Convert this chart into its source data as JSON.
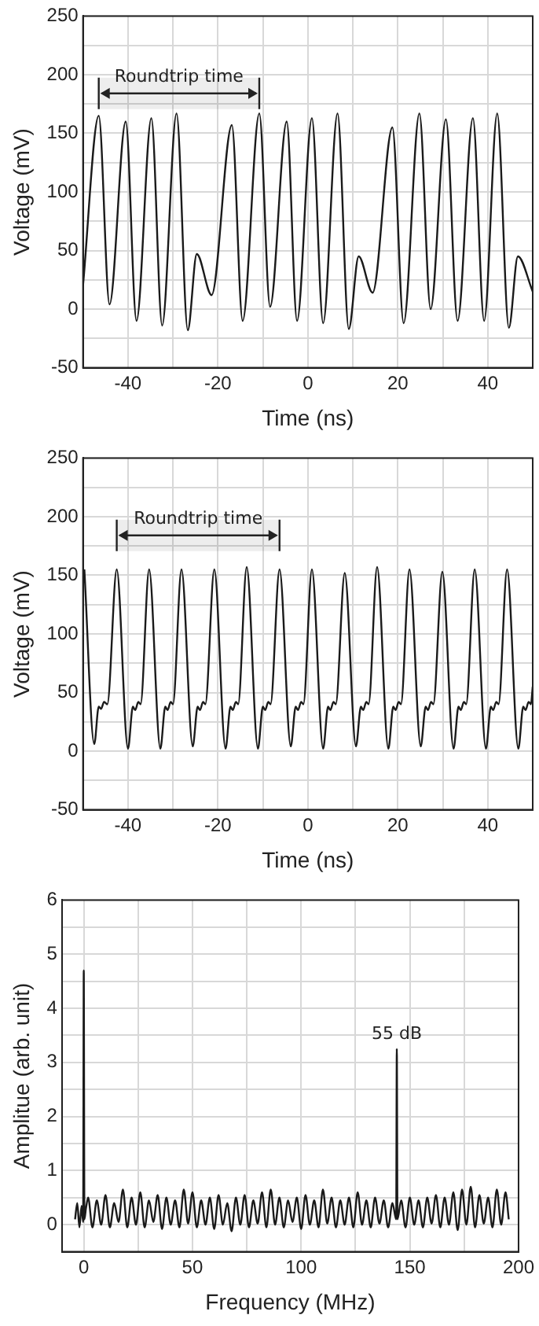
{
  "chart_data": [
    {
      "type": "line",
      "xlabel": "Time (ns)",
      "ylabel": "Voltage (mV)",
      "grid": true,
      "marker": "none",
      "line_style": "solid",
      "xlim": [
        -50,
        50
      ],
      "ylim": [
        -50,
        250
      ],
      "xticks": [
        {
          "value": -50,
          "label": null
        },
        -40,
        {
          "value": -30,
          "label": null
        },
        -20,
        {
          "value": -10,
          "label": null
        },
        0,
        {
          "value": 10,
          "label": null
        },
        20,
        {
          "value": 30,
          "label": null
        },
        40,
        {
          "value": 50,
          "label": null
        }
      ],
      "yticks": [
        -50,
        {
          "value": -25,
          "label": null
        },
        0,
        {
          "value": 25,
          "label": null
        },
        50,
        {
          "value": 75,
          "label": null
        },
        100,
        {
          "value": 125,
          "label": null
        },
        150,
        {
          "value": 175,
          "label": null
        },
        200,
        {
          "value": 225,
          "label": null
        },
        250
      ],
      "bands": [
        {
          "axis": "x",
          "from": -46.5,
          "to": -10.8,
          "label": "Roundtrip time"
        }
      ],
      "x": [
        -50,
        -46.5,
        -44.1,
        -40.5,
        -38.1,
        -34.8,
        -32.4,
        -29.2,
        -26.7,
        -24.7,
        -21.4,
        -16.9,
        -14.5,
        -10.8,
        -8.4,
        -4.7,
        -2.4,
        0.9,
        3.4,
        6.6,
        9.1,
        11.3,
        14.4,
        18.8,
        21.3,
        24.8,
        27.3,
        30.7,
        33.3,
        36.7,
        39.2,
        42.1,
        44.7,
        46.7,
        50
      ],
      "series": [
        {
          "color": "#1a1a1a",
          "values": [
            20,
            165,
            4,
            160,
            -10,
            163,
            -14,
            167,
            -18,
            47,
            12,
            157,
            -10,
            167,
            2,
            160,
            -10,
            163,
            -12,
            167,
            -17,
            45,
            14,
            155,
            -12,
            167,
            0,
            162,
            -10,
            163,
            -10,
            167,
            -16,
            45,
            15
          ]
        }
      ]
    },
    {
      "type": "line",
      "xlabel": "Time (ns)",
      "ylabel": "Voltage (mV)",
      "grid": true,
      "marker": "none",
      "line_style": "solid",
      "xlim": [
        -50,
        50
      ],
      "ylim": [
        -50,
        250
      ],
      "xticks": [
        {
          "value": -50,
          "label": null
        },
        -40,
        {
          "value": -30,
          "label": null
        },
        -20,
        {
          "value": -10,
          "label": null
        },
        0,
        {
          "value": 10,
          "label": null
        },
        20,
        {
          "value": 30,
          "label": null
        },
        40,
        {
          "value": 50,
          "label": null
        }
      ],
      "yticks": [
        -50,
        {
          "value": -25,
          "label": null
        },
        0,
        {
          "value": 25,
          "label": null
        },
        50,
        {
          "value": 75,
          "label": null
        },
        100,
        {
          "value": 125,
          "label": null
        },
        150,
        {
          "value": 175,
          "label": null
        },
        200,
        {
          "value": 225,
          "label": null
        },
        250
      ],
      "bands": [
        {
          "axis": "x",
          "from": -42.5,
          "to": -6.3,
          "label": "Roundtrip time"
        }
      ],
      "x": [
        -49.7,
        -47.5,
        -46.5,
        -46.0,
        -45.3,
        -44.6,
        -42.5,
        -40.0,
        -38.9,
        -38.4,
        -37.7,
        -37.2,
        -35.3,
        -32.8,
        -31.7,
        -31.2,
        -30.5,
        -30.0,
        -28.1,
        -25.6,
        -24.5,
        -24.0,
        -23.3,
        -22.8,
        -20.8,
        -18.3,
        -17.2,
        -16.7,
        -16.0,
        -15.5,
        -13.6,
        -11.1,
        -10.0,
        -9.5,
        -8.8,
        -8.3,
        -6.3,
        -3.8,
        -2.7,
        -2.2,
        -1.5,
        -1.0,
        0.9,
        3.4,
        4.5,
        5.0,
        5.7,
        6.2,
        8.2,
        10.7,
        11.8,
        12.3,
        13.0,
        13.5,
        15.4,
        17.9,
        19.0,
        19.5,
        20.2,
        20.7,
        22.6,
        25.1,
        26.2,
        26.7,
        27.4,
        27.9,
        29.9,
        32.4,
        33.5,
        34.0,
        34.7,
        35.2,
        37.1,
        39.6,
        40.7,
        41.2,
        41.9,
        42.4,
        44.3,
        46.8,
        47.9,
        48.4,
        49.1,
        49.6,
        50
      ],
      "series": [
        {
          "color": "#1a1a1a",
          "values": [
            155,
            6,
            38,
            36,
            42,
            40,
            155,
            2,
            38,
            35,
            42,
            40,
            155,
            2,
            38,
            35,
            42,
            40,
            155,
            4,
            38,
            35,
            42,
            40,
            155,
            2,
            38,
            35,
            42,
            40,
            157,
            2,
            38,
            35,
            42,
            40,
            155,
            4,
            38,
            35,
            42,
            40,
            155,
            2,
            38,
            35,
            42,
            40,
            152,
            4,
            38,
            35,
            42,
            40,
            157,
            2,
            38,
            35,
            42,
            40,
            155,
            4,
            38,
            35,
            42,
            40,
            153,
            2,
            38,
            35,
            42,
            40,
            155,
            2,
            38,
            35,
            42,
            40,
            155,
            2,
            38,
            35,
            42,
            40,
            55
          ]
        }
      ]
    },
    {
      "type": "line",
      "xlabel": "Frequency (MHz)",
      "ylabel": "Amplitue (arb. unit)",
      "grid": true,
      "marker": "none",
      "line_style": "solid",
      "xlim": [
        -10,
        200
      ],
      "ylim": [
        -0.5,
        6
      ],
      "xticks": [
        0,
        {
          "value": 25,
          "label": null
        },
        50,
        {
          "value": 75,
          "label": null
        },
        100,
        {
          "value": 125,
          "label": null
        },
        150,
        {
          "value": 175,
          "label": null
        },
        200
      ],
      "yticks": [
        {
          "value": -0.5,
          "label": null
        },
        0,
        {
          "value": 0.5,
          "label": null
        },
        1,
        {
          "value": 1.5,
          "label": null
        },
        2,
        {
          "value": 2.5,
          "label": null
        },
        3,
        {
          "value": 3.5,
          "label": null
        },
        4,
        {
          "value": 4.5,
          "label": null
        },
        5,
        {
          "value": 5.5,
          "label": null
        },
        6
      ],
      "annotations": [
        {
          "text": "55 dB",
          "x": 144,
          "y": 3.35
        }
      ],
      "x": [
        -4,
        -3,
        -2,
        -1,
        -0.3,
        0,
        0.3,
        1,
        2,
        4,
        6,
        8,
        10,
        12,
        14,
        16,
        18,
        20,
        22,
        24,
        26,
        28,
        30,
        32,
        34,
        36,
        38,
        40,
        42,
        44,
        46,
        48,
        50,
        52,
        54,
        56,
        58,
        60,
        62,
        64,
        66,
        68,
        70,
        72,
        74,
        76,
        78,
        80,
        82,
        84,
        86,
        88,
        90,
        92,
        94,
        96,
        98,
        100,
        102,
        104,
        106,
        108,
        110,
        112,
        114,
        116,
        118,
        120,
        122,
        124,
        126,
        128,
        130,
        132,
        134,
        136,
        138,
        140,
        142,
        143.7,
        144,
        144.3,
        146,
        148,
        150,
        152,
        154,
        156,
        158,
        160,
        162,
        164,
        166,
        168,
        170,
        172,
        174,
        176,
        178,
        180,
        182,
        184,
        186,
        188,
        190,
        192,
        194,
        195.5
      ],
      "series": [
        {
          "color": "#1a1a1a",
          "values": [
            0.1,
            0.4,
            -0.05,
            0.35,
            0.05,
            4.7,
            0.1,
            0.3,
            0.5,
            -0.05,
            0.45,
            0,
            0.55,
            -0.05,
            0.4,
            0.05,
            0.65,
            -0.05,
            0.5,
            0,
            0.6,
            -0.05,
            0.45,
            0.05,
            0.55,
            -0.08,
            0.5,
            0,
            0.45,
            -0.05,
            0.65,
            0.02,
            0.6,
            -0.05,
            0.45,
            0,
            0.5,
            -0.08,
            0.55,
            0,
            0.4,
            -0.12,
            0.5,
            0,
            0.55,
            -0.05,
            0.45,
            0.02,
            0.6,
            -0.05,
            0.65,
            0,
            0.5,
            -0.05,
            0.45,
            0.05,
            0.5,
            -0.08,
            0.55,
            0,
            0.45,
            -0.05,
            0.65,
            0.02,
            0.5,
            -0.05,
            0.45,
            0,
            0.5,
            -0.05,
            0.6,
            0,
            0.45,
            -0.05,
            0.5,
            0.02,
            0.45,
            -0.05,
            0.4,
            0.1,
            3.25,
            0.1,
            0.45,
            -0.05,
            0.5,
            0,
            0.45,
            -0.05,
            0.5,
            0.02,
            0.55,
            -0.05,
            0.5,
            0,
            0.6,
            -0.1,
            0.65,
            0,
            0.7,
            -0.05,
            0.55,
            0.02,
            0.5,
            -0.05,
            0.65,
            0,
            0.6,
            0.1
          ]
        }
      ]
    }
  ]
}
